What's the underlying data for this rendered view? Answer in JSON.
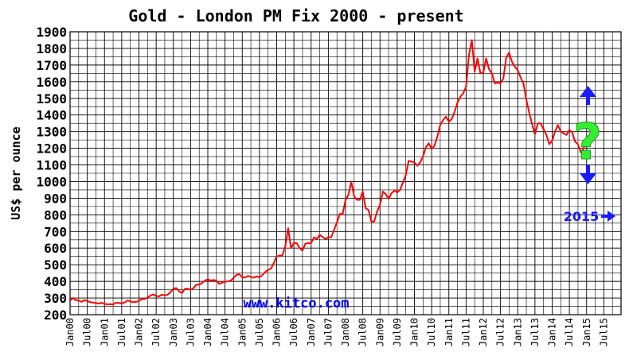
{
  "chart_data": {
    "type": "line",
    "title": "Gold - London PM Fix 2000 - present",
    "ylabel": "US$ per ounce",
    "xlabel": "",
    "ylim": [
      200,
      1900
    ],
    "xlim": [
      "2000-01",
      "2015-12"
    ],
    "grid": true,
    "y_ticks": [
      200,
      300,
      400,
      500,
      600,
      700,
      800,
      900,
      1000,
      1100,
      1200,
      1300,
      1400,
      1500,
      1600,
      1700,
      1800,
      1900
    ],
    "x_tick_labels": [
      "Jan00",
      "Jul00",
      "Jan01",
      "Jul01",
      "Jan02",
      "Jul02",
      "Jan03",
      "Jul03",
      "Jan04",
      "Jul04",
      "Jan05",
      "Jul05",
      "Jan06",
      "Jul06",
      "Jan07",
      "Jul07",
      "Jan08",
      "Jul08",
      "Jan09",
      "Jul09",
      "Jan10",
      "Jul10",
      "Jan11",
      "Jul11",
      "Jan12",
      "Jul12",
      "Jan13",
      "Jul13",
      "Jan14",
      "Jul14",
      "Jan15",
      "Jul15"
    ],
    "series": [
      {
        "color": "#ff0000",
        "points": [
          [
            "2000-01",
            285
          ],
          [
            "2000-02",
            300
          ],
          [
            "2000-03",
            288
          ],
          [
            "2000-04",
            285
          ],
          [
            "2000-05",
            277
          ],
          [
            "2000-06",
            288
          ],
          [
            "2000-07",
            282
          ],
          [
            "2000-08",
            275
          ],
          [
            "2000-09",
            273
          ],
          [
            "2000-10",
            270
          ],
          [
            "2000-11",
            267
          ],
          [
            "2000-12",
            272
          ],
          [
            "2001-01",
            265
          ],
          [
            "2001-02",
            262
          ],
          [
            "2001-03",
            263
          ],
          [
            "2001-04",
            261
          ],
          [
            "2001-05",
            272
          ],
          [
            "2001-06",
            270
          ],
          [
            "2001-07",
            268
          ],
          [
            "2001-08",
            273
          ],
          [
            "2001-09",
            285
          ],
          [
            "2001-10",
            280
          ],
          [
            "2001-11",
            275
          ],
          [
            "2001-12",
            277
          ],
          [
            "2002-01",
            282
          ],
          [
            "2002-02",
            295
          ],
          [
            "2002-03",
            294
          ],
          [
            "2002-04",
            303
          ],
          [
            "2002-05",
            315
          ],
          [
            "2002-06",
            322
          ],
          [
            "2002-07",
            312
          ],
          [
            "2002-08",
            310
          ],
          [
            "2002-09",
            320
          ],
          [
            "2002-10",
            316
          ],
          [
            "2002-11",
            320
          ],
          [
            "2002-12",
            335
          ],
          [
            "2003-01",
            355
          ],
          [
            "2003-02",
            360
          ],
          [
            "2003-03",
            340
          ],
          [
            "2003-04",
            330
          ],
          [
            "2003-05",
            355
          ],
          [
            "2003-06",
            356
          ],
          [
            "2003-07",
            350
          ],
          [
            "2003-08",
            360
          ],
          [
            "2003-09",
            380
          ],
          [
            "2003-10",
            380
          ],
          [
            "2003-11",
            390
          ],
          [
            "2003-12",
            405
          ],
          [
            "2004-01",
            412
          ],
          [
            "2004-02",
            405
          ],
          [
            "2004-03",
            408
          ],
          [
            "2004-04",
            405
          ],
          [
            "2004-05",
            385
          ],
          [
            "2004-06",
            393
          ],
          [
            "2004-07",
            398
          ],
          [
            "2004-08",
            400
          ],
          [
            "2004-09",
            405
          ],
          [
            "2004-10",
            420
          ],
          [
            "2004-11",
            440
          ],
          [
            "2004-12",
            443
          ],
          [
            "2005-01",
            425
          ],
          [
            "2005-02",
            423
          ],
          [
            "2005-03",
            433
          ],
          [
            "2005-04",
            428
          ],
          [
            "2005-05",
            422
          ],
          [
            "2005-06",
            430
          ],
          [
            "2005-07",
            425
          ],
          [
            "2005-08",
            438
          ],
          [
            "2005-09",
            456
          ],
          [
            "2005-10",
            470
          ],
          [
            "2005-11",
            476
          ],
          [
            "2005-12",
            510
          ],
          [
            "2006-01",
            550
          ],
          [
            "2006-02",
            555
          ],
          [
            "2006-03",
            557
          ],
          [
            "2006-04",
            610
          ],
          [
            "2006-05",
            720
          ],
          [
            "2006-06",
            600
          ],
          [
            "2006-07",
            630
          ],
          [
            "2006-08",
            630
          ],
          [
            "2006-09",
            600
          ],
          [
            "2006-10",
            585
          ],
          [
            "2006-11",
            627
          ],
          [
            "2006-12",
            630
          ],
          [
            "2007-01",
            630
          ],
          [
            "2007-02",
            665
          ],
          [
            "2007-03",
            655
          ],
          [
            "2007-04",
            680
          ],
          [
            "2007-05",
            667
          ],
          [
            "2007-06",
            655
          ],
          [
            "2007-07",
            665
          ],
          [
            "2007-08",
            665
          ],
          [
            "2007-09",
            710
          ],
          [
            "2007-10",
            755
          ],
          [
            "2007-11",
            805
          ],
          [
            "2007-12",
            805
          ],
          [
            "2008-01",
            890
          ],
          [
            "2008-02",
            920
          ],
          [
            "2008-03",
            1000
          ],
          [
            "2008-04",
            910
          ],
          [
            "2008-05",
            890
          ],
          [
            "2008-06",
            890
          ],
          [
            "2008-07",
            940
          ],
          [
            "2008-08",
            840
          ],
          [
            "2008-09",
            830
          ],
          [
            "2008-10",
            760
          ],
          [
            "2008-11",
            760
          ],
          [
            "2008-12",
            820
          ],
          [
            "2009-01",
            860
          ],
          [
            "2009-02",
            940
          ],
          [
            "2009-03",
            925
          ],
          [
            "2009-04",
            895
          ],
          [
            "2009-05",
            930
          ],
          [
            "2009-06",
            945
          ],
          [
            "2009-07",
            935
          ],
          [
            "2009-08",
            950
          ],
          [
            "2009-09",
            995
          ],
          [
            "2009-10",
            1040
          ],
          [
            "2009-11",
            1125
          ],
          [
            "2009-12",
            1120
          ],
          [
            "2010-01",
            1115
          ],
          [
            "2010-02",
            1095
          ],
          [
            "2010-03",
            1115
          ],
          [
            "2010-04",
            1150
          ],
          [
            "2010-05",
            1205
          ],
          [
            "2010-06",
            1230
          ],
          [
            "2010-07",
            1195
          ],
          [
            "2010-08",
            1215
          ],
          [
            "2010-09",
            1270
          ],
          [
            "2010-10",
            1340
          ],
          [
            "2010-11",
            1370
          ],
          [
            "2010-12",
            1390
          ],
          [
            "2011-01",
            1360
          ],
          [
            "2011-02",
            1375
          ],
          [
            "2011-03",
            1420
          ],
          [
            "2011-04",
            1475
          ],
          [
            "2011-05",
            1510
          ],
          [
            "2011-06",
            1530
          ],
          [
            "2011-07",
            1570
          ],
          [
            "2011-08",
            1760
          ],
          [
            "2011-09",
            1850
          ],
          [
            "2011-10",
            1660
          ],
          [
            "2011-11",
            1740
          ],
          [
            "2011-12",
            1650
          ],
          [
            "2012-01",
            1655
          ],
          [
            "2012-02",
            1740
          ],
          [
            "2012-03",
            1675
          ],
          [
            "2012-04",
            1650
          ],
          [
            "2012-05",
            1590
          ],
          [
            "2012-06",
            1595
          ],
          [
            "2012-07",
            1590
          ],
          [
            "2012-08",
            1620
          ],
          [
            "2012-09",
            1745
          ],
          [
            "2012-10",
            1775
          ],
          [
            "2012-11",
            1720
          ],
          [
            "2012-12",
            1690
          ],
          [
            "2013-01",
            1670
          ],
          [
            "2013-02",
            1625
          ],
          [
            "2013-03",
            1590
          ],
          [
            "2013-04",
            1490
          ],
          [
            "2013-05",
            1415
          ],
          [
            "2013-06",
            1345
          ],
          [
            "2013-07",
            1285
          ],
          [
            "2013-08",
            1350
          ],
          [
            "2013-09",
            1350
          ],
          [
            "2013-10",
            1315
          ],
          [
            "2013-11",
            1280
          ],
          [
            "2013-12",
            1225
          ],
          [
            "2014-01",
            1245
          ],
          [
            "2014-02",
            1300
          ],
          [
            "2014-03",
            1340
          ],
          [
            "2014-04",
            1300
          ],
          [
            "2014-05",
            1290
          ],
          [
            "2014-06",
            1280
          ],
          [
            "2014-07",
            1310
          ],
          [
            "2014-08",
            1295
          ],
          [
            "2014-09",
            1240
          ],
          [
            "2014-10",
            1225
          ],
          [
            "2014-11",
            1175
          ],
          [
            "2014-12",
            1200
          ],
          [
            "2015-01",
            1265
          ]
        ]
      }
    ]
  },
  "annotations": {
    "watermark": "www.kitco.com",
    "year_marker": "2015",
    "question_mark": "?",
    "colors": {
      "up_arrow": "#1a1aff",
      "down_arrow": "#1a1aff",
      "question_mark": "#33ee33",
      "watermark": "#0000ff",
      "grid_line": "#000000",
      "plot_background": "#ffffff"
    },
    "icons": [
      "up-arrow-icon",
      "down-arrow-icon",
      "right-arrow-icon",
      "question-mark-icon"
    ]
  }
}
